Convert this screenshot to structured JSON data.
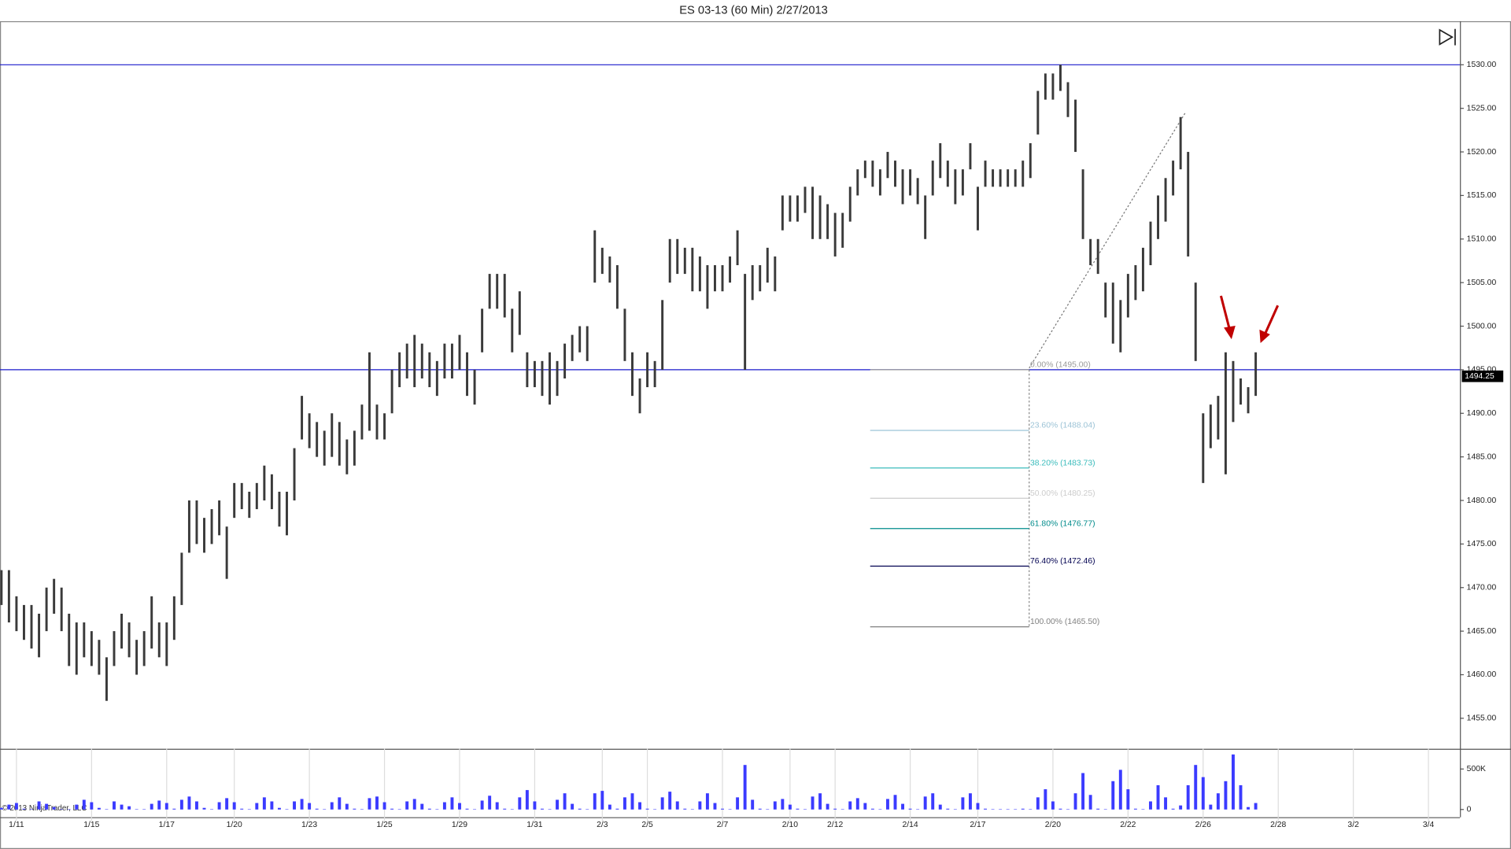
{
  "chart_data": {
    "type": "range-bar",
    "title": "ES 03-13 (60 Min)  2/27/2013",
    "copyright": "© 2013 NinjaTrader, LLC",
    "categories": [
      null,
      null,
      "1/11",
      null,
      null,
      null,
      null,
      null,
      null,
      null,
      null,
      null,
      "1/15",
      null,
      null,
      null,
      null,
      null,
      null,
      null,
      null,
      null,
      "1/17",
      null,
      null,
      null,
      null,
      null,
      null,
      null,
      null,
      "1/20",
      null,
      null,
      null,
      null,
      null,
      null,
      null,
      null,
      null,
      "1/23",
      null,
      null,
      null,
      null,
      null,
      null,
      null,
      null,
      null,
      "1/25",
      null,
      null,
      null,
      null,
      null,
      null,
      null,
      null,
      null,
      "1/29",
      null,
      null,
      null,
      null,
      null,
      null,
      null,
      null,
      null,
      "1/31",
      null,
      null,
      null,
      null,
      null,
      null,
      null,
      null,
      "2/3",
      null,
      null,
      null,
      null,
      null,
      "2/5",
      null,
      null,
      null,
      null,
      null,
      null,
      null,
      null,
      null,
      "2/7",
      null,
      null,
      null,
      null,
      null,
      null,
      null,
      null,
      "2/10",
      null,
      null,
      null,
      null,
      null,
      "2/12",
      null,
      null,
      null,
      null,
      null,
      null,
      null,
      null,
      null,
      "2/14",
      null,
      null,
      null,
      null,
      null,
      null,
      null,
      null,
      "2/17",
      null,
      null,
      null,
      null,
      null,
      null,
      null,
      null,
      null,
      "2/20",
      null,
      null,
      null,
      null,
      null,
      null,
      null,
      null,
      null,
      "2/22",
      null,
      null,
      null,
      null,
      null,
      null,
      null,
      null,
      null,
      "2/26",
      null,
      null,
      null,
      null,
      null,
      null,
      null,
      null,
      null,
      "2/28",
      null,
      null,
      null,
      null,
      null,
      null,
      null,
      null,
      null,
      "3/2",
      null,
      null,
      null,
      null,
      null,
      null,
      null,
      null,
      null,
      "3/4",
      null,
      null,
      null
    ],
    "high": [
      1472,
      1472,
      1469,
      1468,
      1468,
      1467,
      1470,
      1471,
      1470,
      1467,
      1466,
      1466,
      1465,
      1464,
      1462,
      1465,
      1467,
      1466,
      1464,
      1465,
      1469,
      1466,
      1466,
      1469,
      1474,
      1480,
      1480,
      1478,
      1479,
      1480,
      1477,
      1482,
      1482,
      1481,
      1482,
      1484,
      1483,
      1481,
      1481,
      1486,
      1492,
      1490,
      1489,
      1488,
      1490,
      1489,
      1487,
      1488,
      1491,
      1497,
      1491,
      1490,
      1495,
      1497,
      1498,
      1499,
      1498,
      1497,
      1496,
      1498,
      1498,
      1499,
      1497,
      1495,
      1502,
      1506,
      1506,
      1506,
      1502,
      1504,
      1497,
      1496,
      1496,
      1497,
      1496,
      1498,
      1499,
      1500,
      1500,
      1511,
      1509,
      1508,
      1507,
      1502,
      1497,
      1494,
      1497,
      1496,
      1503,
      1510,
      1510,
      1509,
      1509,
      1508,
      1507,
      1507,
      1507,
      1508,
      1511,
      1506,
      1507,
      1507,
      1509,
      1508,
      1515,
      1515,
      1515,
      1516,
      1516,
      1515,
      1514,
      1513,
      1513,
      1516,
      1518,
      1519,
      1519,
      1518,
      1520,
      1519,
      1518,
      1518,
      1517,
      1515,
      1519,
      1521,
      1519,
      1518,
      1518,
      1521,
      1516,
      1519,
      1518,
      1518,
      1518,
      1518,
      1519,
      1521,
      1527,
      1529,
      1529,
      1530,
      1528,
      1526,
      1518,
      1510,
      1510,
      1505,
      1505,
      1503,
      1506,
      1507,
      1509,
      1512,
      1515,
      1517,
      1519,
      1524,
      1520,
      1505,
      1490,
      1491,
      1492,
      1497,
      1496,
      1494,
      1493,
      1497,
      null,
      null,
      null,
      null,
      null,
      null,
      null,
      null,
      null,
      null,
      null,
      null,
      null,
      null,
      null,
      null,
      null,
      null,
      null,
      null,
      null,
      null,
      null,
      null,
      null,
      null
    ],
    "low": [
      1468,
      1466,
      1465,
      1464,
      1463,
      1462,
      1465,
      1467,
      1465,
      1461,
      1460,
      1462,
      1461,
      1460,
      1457,
      1461,
      1463,
      1462,
      1460,
      1461,
      1463,
      1462,
      1461,
      1464,
      1468,
      1474,
      1475,
      1474,
      1475,
      1476,
      1471,
      1478,
      1479,
      1478,
      1479,
      1480,
      1479,
      1477,
      1476,
      1480,
      1487,
      1486,
      1485,
      1484,
      1485,
      1484,
      1483,
      1484,
      1487,
      1488,
      1487,
      1487,
      1490,
      1493,
      1494,
      1493,
      1494,
      1493,
      1492,
      1494,
      1494,
      1495,
      1492,
      1491,
      1497,
      1502,
      1502,
      1501,
      1497,
      1499,
      1493,
      1493,
      1492,
      1491,
      1492,
      1494,
      1496,
      1497,
      1496,
      1505,
      1506,
      1505,
      1502,
      1496,
      1492,
      1490,
      1493,
      1493,
      1495,
      1505,
      1506,
      1506,
      1504,
      1504,
      1502,
      1504,
      1504,
      1505,
      1507,
      1495,
      1503,
      1504,
      1505,
      1504,
      1511,
      1512,
      1512,
      1513,
      1510,
      1510,
      1510,
      1508,
      1509,
      1512,
      1515,
      1517,
      1516,
      1515,
      1517,
      1516,
      1514,
      1515,
      1514,
      1510,
      1515,
      1517,
      1516,
      1514,
      1515,
      1518,
      1511,
      1516,
      1516,
      1516,
      1516,
      1516,
      1516,
      1517,
      1522,
      1526,
      1526,
      1527,
      1524,
      1520,
      1510,
      1507,
      1506,
      1501,
      1498,
      1497,
      1501,
      1503,
      1504,
      1507,
      1510,
      1512,
      1515,
      1518,
      1508,
      1496,
      1482,
      1486,
      1487,
      1483,
      1489,
      1491,
      1490,
      1492,
      null,
      null,
      null,
      null,
      null,
      null,
      null,
      null,
      null,
      null,
      null,
      null,
      null,
      null,
      null,
      null,
      null,
      null,
      null,
      null,
      null,
      null,
      null,
      null,
      null,
      null
    ],
    "volume": [
      20000,
      60000,
      80000,
      10000,
      5000,
      100000,
      70000,
      30000,
      5000,
      5000,
      60000,
      120000,
      90000,
      20000,
      5000,
      100000,
      60000,
      40000,
      5000,
      5000,
      70000,
      110000,
      80000,
      10000,
      120000,
      160000,
      100000,
      20000,
      5000,
      90000,
      140000,
      90000,
      10000,
      5000,
      80000,
      150000,
      100000,
      20000,
      5000,
      100000,
      130000,
      80000,
      10000,
      5000,
      90000,
      150000,
      70000,
      10000,
      5000,
      140000,
      160000,
      90000,
      10000,
      5000,
      100000,
      130000,
      70000,
      10000,
      5000,
      90000,
      150000,
      80000,
      10000,
      5000,
      110000,
      170000,
      90000,
      10000,
      5000,
      150000,
      240000,
      100000,
      10000,
      5000,
      120000,
      200000,
      70000,
      10000,
      5000,
      200000,
      230000,
      60000,
      10000,
      150000,
      200000,
      90000,
      10000,
      5000,
      150000,
      220000,
      100000,
      10000,
      5000,
      100000,
      200000,
      80000,
      10000,
      5000,
      150000,
      550000,
      120000,
      10000,
      5000,
      100000,
      130000,
      60000,
      10000,
      5000,
      160000,
      200000,
      70000,
      10000,
      5000,
      100000,
      140000,
      80000,
      10000,
      5000,
      130000,
      180000,
      70000,
      10000,
      5000,
      160000,
      200000,
      60000,
      10000,
      5000,
      150000,
      200000,
      80000,
      10000,
      5000,
      5000,
      5000,
      5000,
      10000,
      5000,
      150000,
      250000,
      100000,
      10000,
      5000,
      200000,
      450000,
      180000,
      10000,
      5000,
      350000,
      490000,
      250000,
      10000,
      5000,
      100000,
      300000,
      150000,
      10000,
      50000,
      300000,
      550000,
      400000,
      60000,
      200000,
      350000,
      680000,
      300000,
      30000,
      80000,
      null,
      null,
      null,
      null,
      null,
      null,
      null,
      null,
      null,
      null,
      null,
      null,
      null,
      null,
      null,
      null,
      null,
      null,
      null,
      null,
      null,
      null,
      null,
      null,
      null,
      null
    ],
    "bar_color": "#3a3a3a",
    "volume_color": "#3b3bff",
    "ylim": [
      1451.5,
      1535
    ],
    "yticks": [
      {
        "value": 1455,
        "label": "1455.00"
      },
      {
        "value": 1460,
        "label": "1460.00"
      },
      {
        "value": 1465,
        "label": "1465.00"
      },
      {
        "value": 1470,
        "label": "1470.00"
      },
      {
        "value": 1475,
        "label": "1475.00"
      },
      {
        "value": 1480,
        "label": "1480.00"
      },
      {
        "value": 1485,
        "label": "1485.00"
      },
      {
        "value": 1490,
        "label": "1490.00"
      },
      {
        "value": 1495,
        "label": "1495.00"
      },
      {
        "value": 1500,
        "label": "1500.00"
      },
      {
        "value": 1505,
        "label": "1505.00"
      },
      {
        "value": 1510,
        "label": "1510.00"
      },
      {
        "value": 1515,
        "label": "1515.00"
      },
      {
        "value": 1520,
        "label": "1520.00"
      },
      {
        "value": 1525,
        "label": "1525.00"
      },
      {
        "value": 1530,
        "label": "1530.00"
      }
    ],
    "volume_ylim": [
      0,
      750000
    ],
    "volume_yticks": [
      0,
      {
        "value": 500000,
        "label": "500K"
      }
    ],
    "hlines": [
      1530,
      1495
    ],
    "hline_color": "#1a1acc",
    "last_price": 1494.25,
    "fib_levels": [
      {
        "label": "0.00% (1495.00)",
        "value": 1495.0,
        "color": "#9a9a9a"
      },
      {
        "label": "23.60% (1488.04)",
        "value": 1488.04,
        "color": "#9cc3d6"
      },
      {
        "label": "38.20% (1483.73)",
        "value": 1483.73,
        "color": "#3bbcbc"
      },
      {
        "label": "50.00% (1480.25)",
        "value": 1480.25,
        "color": "#cccccc"
      },
      {
        "label": "61.80% (1476.77)",
        "value": 1476.77,
        "color": "#008b8b"
      },
      {
        "label": "76.40% (1472.46)",
        "value": 1472.46,
        "color": "#000050"
      },
      {
        "label": "100.00% (1465.50)",
        "value": 1465.5,
        "color": "#808080"
      }
    ]
  }
}
